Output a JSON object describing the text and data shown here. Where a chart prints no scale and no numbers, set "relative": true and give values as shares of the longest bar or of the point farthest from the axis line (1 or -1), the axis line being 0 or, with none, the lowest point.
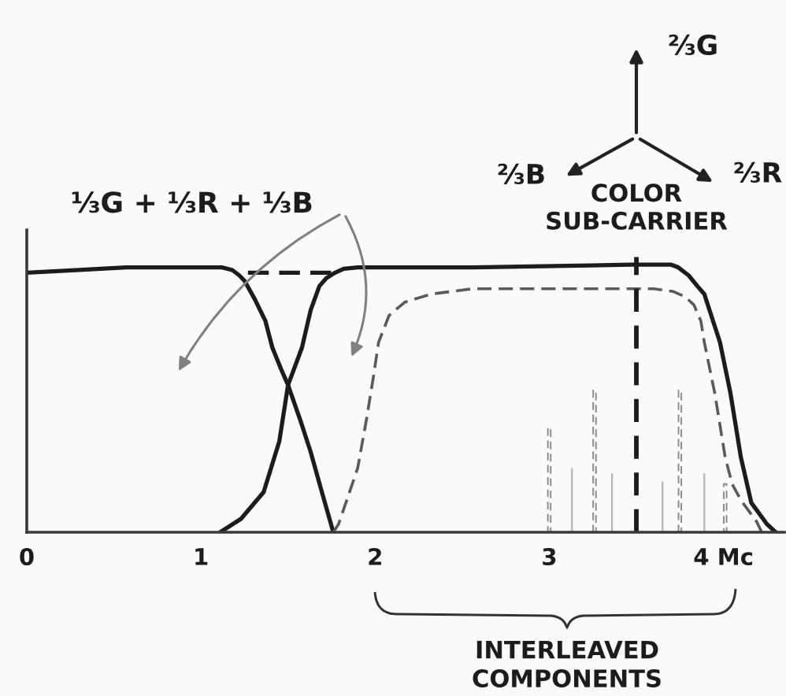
{
  "chart_data": {
    "type": "line",
    "relative": true,
    "tick_labels": "x",
    "xlim": [
      0,
      4.35
    ],
    "xticks": [
      0,
      1,
      2,
      3,
      {
        "value": 4,
        "label": "4 Mc"
      }
    ],
    "series": [
      {
        "color": "#1c1c1c",
        "x": [
          0,
          0.3,
          0.57,
          0.85,
          1.05,
          1.12,
          1.18,
          1.22,
          1.25,
          1.31,
          1.37,
          1.41,
          1.46,
          1.5,
          1.57,
          1.63,
          1.69,
          1.76
        ],
        "values": [
          0.97,
          0.98,
          0.99,
          0.99,
          0.99,
          0.99,
          0.98,
          0.96,
          0.94,
          0.87,
          0.79,
          0.69,
          0.61,
          0.55,
          0.42,
          0.3,
          0.16,
          0
        ]
      },
      {
        "color": "#1c1c1c",
        "line_style": "dashed",
        "x": [
          1.27,
          1.77
        ],
        "values": [
          0.97,
          0.97
        ]
      },
      {
        "color": "#1c1c1c",
        "x": [
          1.11,
          1.23,
          1.36,
          1.45,
          1.5,
          1.58,
          1.63,
          1.68,
          1.72,
          1.77,
          1.82,
          1.9,
          2.56,
          3.47,
          3.7,
          3.74,
          3.8,
          3.85,
          3.89,
          3.98,
          4.04,
          4.1,
          4.16,
          4.25,
          4.3
        ],
        "values": [
          0,
          0.05,
          0.15,
          0.34,
          0.55,
          0.69,
          0.83,
          0.92,
          0.95,
          0.97,
          0.985,
          0.99,
          0.99,
          1,
          1,
          0.99,
          0.96,
          0.92,
          0.89,
          0.71,
          0.52,
          0.28,
          0.11,
          0.03,
          0
        ]
      },
      {
        "color": "#5a5a5a",
        "line_style": "dashed",
        "x": [
          1.76,
          1.79,
          1.9,
          1.95,
          1.99,
          2.02,
          2.08,
          2.17,
          2.32,
          2.56,
          3.2,
          3.6,
          3.71,
          3.78,
          3.83,
          3.87,
          3.89,
          3.95,
          4.01,
          4.05,
          4.1,
          4.19,
          4.22
        ],
        "values": [
          0,
          0.03,
          0.24,
          0.42,
          0.58,
          0.71,
          0.81,
          0.86,
          0.89,
          0.91,
          0.91,
          0.91,
          0.9,
          0.88,
          0.85,
          0.79,
          0.71,
          0.52,
          0.28,
          0.18,
          0.12,
          0.04,
          0
        ]
      },
      {
        "type": "bar",
        "color": "#8a8a8a",
        "line_style": "dashed",
        "x": [
          3.0,
          3.26,
          3.75,
          4.01
        ],
        "values": [
          0.39,
          0.53,
          0.53,
          0.18
        ]
      },
      {
        "type": "bar",
        "color": "#b4b4b4",
        "x": [
          3.13,
          3.36,
          3.65,
          3.89
        ],
        "values": [
          0.24,
          0.22,
          0.19,
          0.22
        ]
      }
    ],
    "ref_lines": [
      {
        "axis": "x",
        "value": 3.5,
        "label": "COLOR\nSUB-CARRIER",
        "color": "#1c1c1c",
        "line_style": "dashed"
      }
    ],
    "annotations": [
      "⅓G + ⅓R + ⅓B",
      "INTERLEAVED\nCOMPONENTS",
      "⅔G",
      "⅔B",
      "⅔R"
    ]
  }
}
